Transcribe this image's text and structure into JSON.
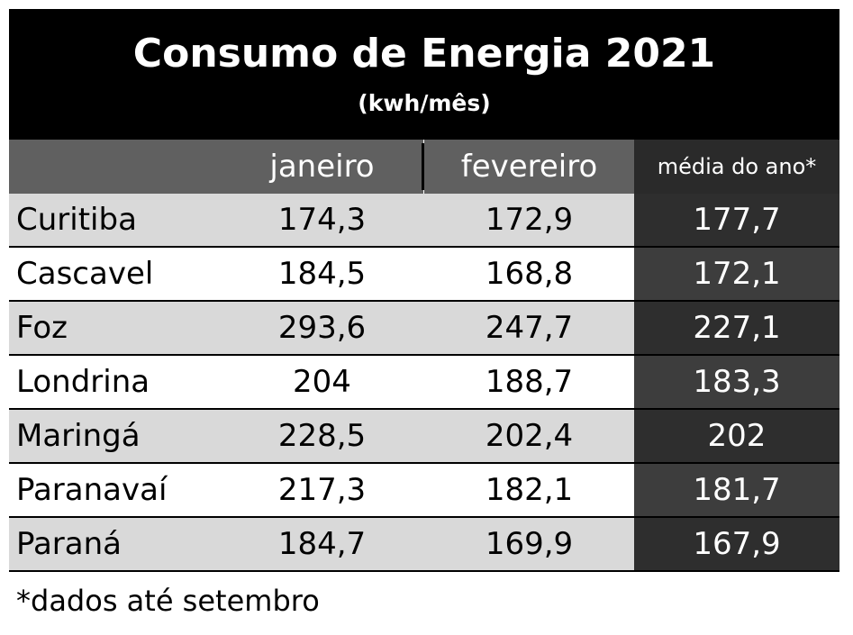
{
  "chart_data": {
    "type": "table",
    "title": "Consumo de Energia 2021",
    "subtitle": "(kwh/mês)",
    "columns": [
      "",
      "janeiro",
      "fevereiro",
      "média do ano*"
    ],
    "rows": [
      {
        "city": "Curitiba",
        "janeiro": "174,3",
        "fevereiro": "172,9",
        "media": "177,7"
      },
      {
        "city": "Cascavel",
        "janeiro": "184,5",
        "fevereiro": "168,8",
        "media": "172,1"
      },
      {
        "city": "Foz",
        "janeiro": "293,6",
        "fevereiro": "247,7",
        "media": "227,1"
      },
      {
        "city": "Londrina",
        "janeiro": "204",
        "fevereiro": "188,7",
        "media": "183,3"
      },
      {
        "city": "Maringá",
        "janeiro": "228,5",
        "fevereiro": "202,4",
        "media": "202"
      },
      {
        "city": "Paranavaí",
        "janeiro": "217,3",
        "fevereiro": "182,1",
        "media": "181,7"
      },
      {
        "city": "Paraná",
        "janeiro": "184,7",
        "fevereiro": "169,9",
        "media": "167,9"
      }
    ],
    "footnote": "*dados até setembro"
  }
}
